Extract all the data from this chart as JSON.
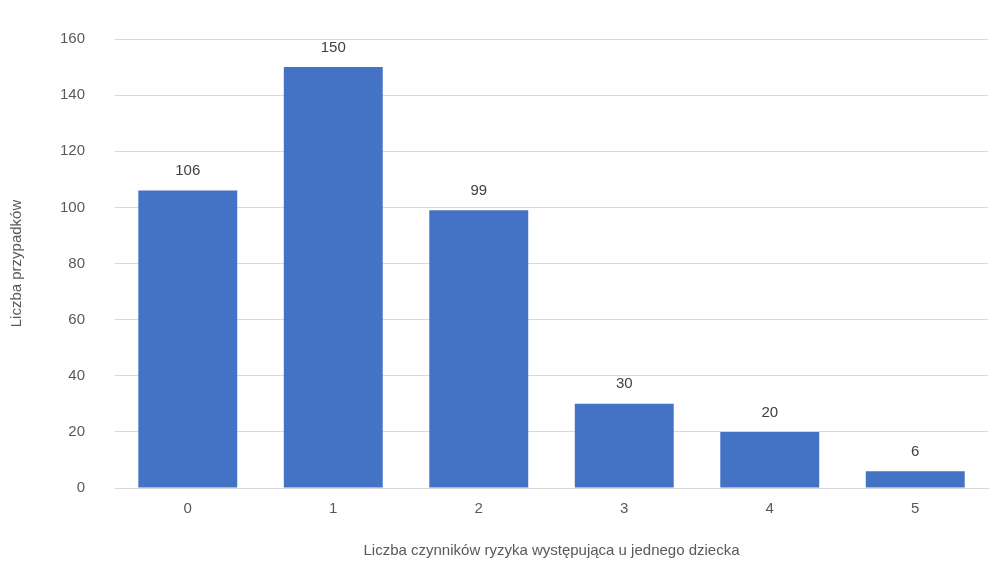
{
  "chart_data": {
    "type": "bar",
    "xlabel": "Liczba czynników ryzyka występująca u jednego dziecka",
    "ylabel": "Liczba przypadków",
    "categories": [
      "0",
      "1",
      "2",
      "3",
      "4",
      "5"
    ],
    "values": [
      106,
      150,
      99,
      30,
      20,
      6
    ],
    "color": "#4472c4",
    "ylim": [
      0,
      160
    ],
    "yticks": [
      0,
      20,
      40,
      60,
      80,
      100,
      120,
      140,
      160
    ],
    "grid": "y",
    "data_labels": true,
    "legend": false
  }
}
